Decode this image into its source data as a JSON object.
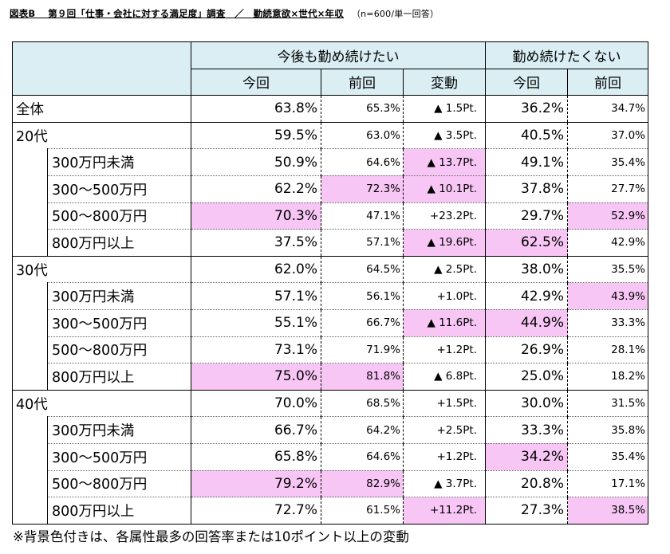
{
  "title": {
    "text": "図表B　 第９回「仕事・会社に対する満足度」調査　／　勤続意欲×世代×年収",
    "note": "（n=600/単一回答）"
  },
  "header": {
    "group1": "今後も勤め続けたい",
    "group2": "勤め続けたくない",
    "this": "今回",
    "prev": "前回",
    "change": "変動"
  },
  "rows": [
    {
      "label": "全体",
      "indent": false,
      "a": "63.8%",
      "b": "65.3%",
      "c": "▲ 1.5Pt.",
      "d": "36.2%",
      "e": "34.7%",
      "hl": []
    },
    {
      "label": "20代",
      "indent": false,
      "a": "59.5%",
      "b": "63.0%",
      "c": "▲ 3.5Pt.",
      "d": "40.5%",
      "e": "37.0%",
      "hl": []
    },
    {
      "label": "300万円未満",
      "indent": true,
      "a": "50.9%",
      "b": "64.6%",
      "c": "▲ 13.7Pt.",
      "d": "49.1%",
      "e": "35.4%",
      "hl": [
        "c"
      ]
    },
    {
      "label": "300～500万円",
      "indent": true,
      "a": "62.2%",
      "b": "72.3%",
      "c": "▲ 10.1Pt.",
      "d": "37.8%",
      "e": "27.7%",
      "hl": [
        "b",
        "c"
      ]
    },
    {
      "label": "500～800万円",
      "indent": true,
      "a": "70.3%",
      "b": "47.1%",
      "c": "+23.2Pt.",
      "d": "29.7%",
      "e": "52.9%",
      "hl": [
        "a",
        "e"
      ]
    },
    {
      "label": "800万円以上",
      "indent": true,
      "a": "37.5%",
      "b": "57.1%",
      "c": "▲ 19.6Pt.",
      "d": "62.5%",
      "e": "42.9%",
      "hl": [
        "c",
        "d"
      ]
    },
    {
      "label": "30代",
      "indent": false,
      "a": "62.0%",
      "b": "64.5%",
      "c": "▲ 2.5Pt.",
      "d": "38.0%",
      "e": "35.5%",
      "hl": []
    },
    {
      "label": "300万円未満",
      "indent": true,
      "a": "57.1%",
      "b": "56.1%",
      "c": "+1.0Pt.",
      "d": "42.9%",
      "e": "43.9%",
      "hl": [
        "e"
      ]
    },
    {
      "label": "300～500万円",
      "indent": true,
      "a": "55.1%",
      "b": "66.7%",
      "c": "▲ 11.6Pt.",
      "d": "44.9%",
      "e": "33.3%",
      "hl": [
        "c",
        "d"
      ]
    },
    {
      "label": "500～800万円",
      "indent": true,
      "a": "73.1%",
      "b": "71.9%",
      "c": "+1.2Pt.",
      "d": "26.9%",
      "e": "28.1%",
      "hl": []
    },
    {
      "label": "800万円以上",
      "indent": true,
      "a": "75.0%",
      "b": "81.8%",
      "c": "▲ 6.8Pt.",
      "d": "25.0%",
      "e": "18.2%",
      "hl": [
        "a",
        "b"
      ]
    },
    {
      "label": "40代",
      "indent": false,
      "a": "70.0%",
      "b": "68.5%",
      "c": "+1.5Pt.",
      "d": "30.0%",
      "e": "31.5%",
      "hl": []
    },
    {
      "label": "300万円未満",
      "indent": true,
      "a": "66.7%",
      "b": "64.2%",
      "c": "+2.5Pt.",
      "d": "33.3%",
      "e": "35.8%",
      "hl": []
    },
    {
      "label": "300～500万円",
      "indent": true,
      "a": "65.8%",
      "b": "64.6%",
      "c": "+1.2Pt.",
      "d": "34.2%",
      "e": "35.4%",
      "hl": [
        "d"
      ]
    },
    {
      "label": "500～800万円",
      "indent": true,
      "a": "79.2%",
      "b": "82.9%",
      "c": "▲ 3.7Pt.",
      "d": "20.8%",
      "e": "17.1%",
      "hl": [
        "a",
        "b"
      ]
    },
    {
      "label": "800万円以上",
      "indent": true,
      "a": "72.7%",
      "b": "61.5%",
      "c": "+11.2Pt.",
      "d": "27.3%",
      "e": "38.5%",
      "hl": [
        "c",
        "e"
      ]
    }
  ],
  "footnote": "※背景色付きは、各属性最多の回答率または10ポイント以上の変動"
}
